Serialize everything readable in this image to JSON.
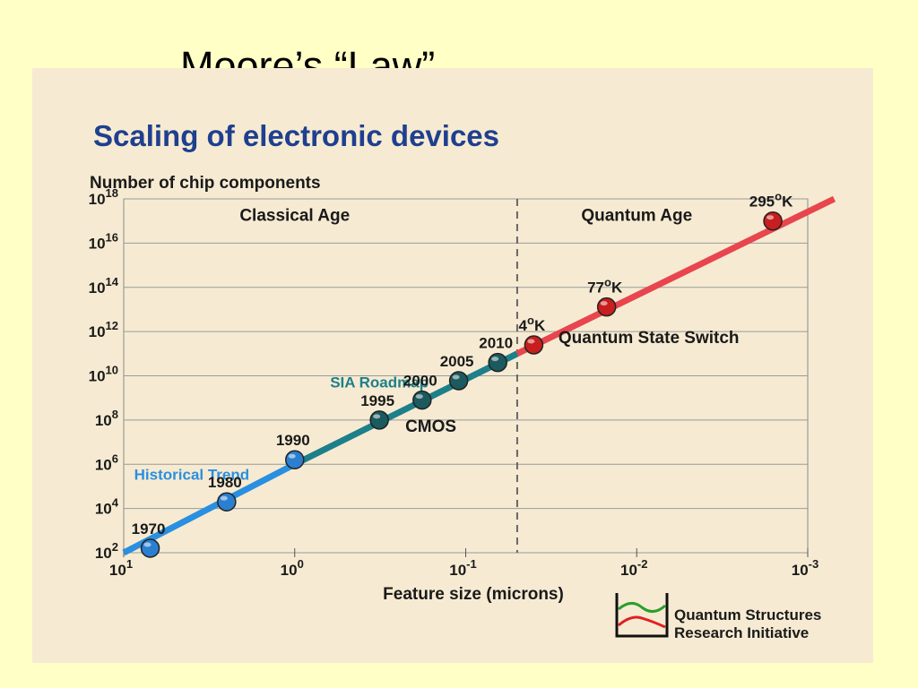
{
  "slide": {
    "title": "Moore’s “Law”"
  },
  "logo": {
    "line1": "Quantum Structures",
    "line2": "Research Initiative"
  },
  "chart_data": {
    "type": "line",
    "title": "Scaling of electronic devices",
    "ylabel": "Number of chip components",
    "xlabel": "Feature size (microns)",
    "x_scale": "log",
    "y_scale": "log",
    "x_reversed": true,
    "xlim": [
      10,
      0.001
    ],
    "ylim": [
      100,
      1e+18
    ],
    "x_ticks": [
      {
        "value": 10,
        "base": "10",
        "exp": "1"
      },
      {
        "value": 1,
        "base": "10",
        "exp": "0"
      },
      {
        "value": 0.1,
        "base": "10",
        "exp": "-1"
      },
      {
        "value": 0.01,
        "base": "10",
        "exp": "-2"
      },
      {
        "value": 0.001,
        "base": "10",
        "exp": "-3"
      }
    ],
    "y_ticks": [
      {
        "value": 100.0,
        "base": "10",
        "exp": "2"
      },
      {
        "value": 10000.0,
        "base": "10",
        "exp": "4"
      },
      {
        "value": 1000000.0,
        "base": "10",
        "exp": "6"
      },
      {
        "value": 100000000.0,
        "base": "10",
        "exp": "8"
      },
      {
        "value": 10000000000.0,
        "base": "10",
        "exp": "10"
      },
      {
        "value": 1000000000000.0,
        "base": "10",
        "exp": "12"
      },
      {
        "value": 100000000000000.0,
        "base": "10",
        "exp": "14"
      },
      {
        "value": 1e+16,
        "base": "10",
        "exp": "16"
      },
      {
        "value": 1e+18,
        "base": "10",
        "exp": "18"
      }
    ],
    "grid": true,
    "divider_x": 0.05,
    "series": [
      {
        "name": "Historical Trend",
        "color": "#2a8fe0",
        "x_start": 10,
        "y_start": 100,
        "x_end": 1,
        "y_end": 1000000.0,
        "points": [
          {
            "label": "1970",
            "x": 7.0,
            "y": 160.0
          },
          {
            "label": "1980",
            "x": 2.5,
            "y": 20000.0
          },
          {
            "label": "1990",
            "x": 1.0,
            "y": 1600000.0
          }
        ]
      },
      {
        "name": "SIA Roadmap",
        "color": "#1d7f8a",
        "x_start": 1,
        "y_start": 1000000.0,
        "x_end": 0.05,
        "y_end": 100000000000.0,
        "points": [
          {
            "label": "1995",
            "x": 0.32,
            "y": 100000000.0
          },
          {
            "label": "2000",
            "x": 0.18,
            "y": 800000000.0
          },
          {
            "label": "2005",
            "x": 0.11,
            "y": 6000000000.0
          },
          {
            "label": "2010",
            "x": 0.065,
            "y": 40000000000.0
          }
        ]
      },
      {
        "name": "",
        "color": "#e8454e",
        "x_start": 0.05,
        "y_start": 100000000000.0,
        "x_end": 0.0007,
        "y_end": 1e+18,
        "points": [
          {
            "label": "4",
            "deg": "o",
            "unit": "K",
            "x": 0.04,
            "y": 250000000000.0
          },
          {
            "label": "77",
            "deg": "o",
            "unit": "K",
            "x": 0.015,
            "y": 13000000000000.0
          },
          {
            "label": "295",
            "deg": "o",
            "unit": "K",
            "x": 0.0016,
            "y": 1e+17
          }
        ]
      }
    ],
    "annotations": [
      {
        "text": "Classical Age",
        "x": 1.0,
        "y": 1e+17
      },
      {
        "text": "Quantum Age",
        "x": 0.01,
        "y": 1e+17
      },
      {
        "text": "Quantum State Switch",
        "x": 0.0085,
        "y": 300000000000.0
      },
      {
        "text": "CMOS",
        "x": 0.16,
        "y": 30000000.0
      }
    ]
  }
}
